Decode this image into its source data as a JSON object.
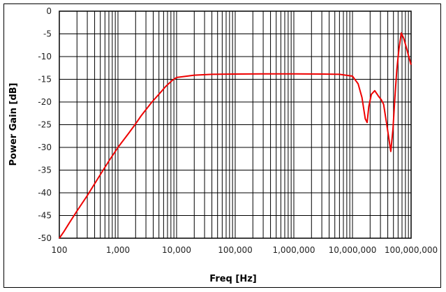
{
  "chart_data": {
    "type": "line",
    "title": "",
    "xlabel": "Freq [Hz]",
    "ylabel": "Power Gain [dB]",
    "xscale": "log",
    "xlim": [
      100,
      100000000
    ],
    "ylim": [
      -50,
      0
    ],
    "grid": true,
    "legend": "none",
    "x_tick_labels": [
      "100",
      "1,000",
      "10,000",
      "100,000",
      "1,000,000",
      "10,000,000",
      "100,000,000"
    ],
    "x_ticks": [
      100,
      1000,
      10000,
      100000,
      1000000,
      10000000,
      100000000
    ],
    "y_ticks": [
      0,
      -5,
      -10,
      -15,
      -20,
      -25,
      -30,
      -35,
      -40,
      -45,
      -50
    ],
    "y_tick_labels": [
      "0",
      "-5",
      "-10",
      "-15",
      "-20",
      "-25",
      "-30",
      "-35",
      "-40",
      "-45",
      "-50"
    ],
    "series": [
      {
        "name": "Power Gain",
        "color": "#ee0000",
        "x": [
          100,
          120,
          150,
          200,
          300,
          500,
          700,
          1000,
          1500,
          1950,
          2500,
          3800,
          5000,
          6500,
          8500,
          10000,
          15000,
          20000,
          40000,
          100000,
          300000,
          1000000,
          3000000,
          6000000,
          10000000,
          12500000,
          14500000,
          16500000,
          17800000,
          19000000,
          21000000,
          24000000,
          28000000,
          31000000,
          34000000,
          38000000,
          42000000,
          45000000,
          49000000,
          53000000,
          57000000,
          62000000,
          68000000,
          75000000,
          83000000,
          92000000,
          100000000
        ],
        "y": [
          -50,
          -48.5,
          -46.5,
          -44,
          -40.6,
          -36,
          -33,
          -30,
          -27,
          -25,
          -23,
          -20,
          -18.3,
          -16.6,
          -15.2,
          -14.6,
          -14.3,
          -14.1,
          -13.9,
          -13.85,
          -13.8,
          -13.8,
          -13.85,
          -13.9,
          -14.3,
          -16,
          -19,
          -23.7,
          -24.5,
          -21,
          -18.3,
          -17.5,
          -18.8,
          -19.5,
          -20.5,
          -24.5,
          -28.3,
          -30.9,
          -26,
          -19,
          -12.9,
          -8.3,
          -4.8,
          -6,
          -8,
          -10.2,
          -11.8
        ]
      }
    ]
  },
  "colors": {
    "line": "#ee0000",
    "grid": "#000000",
    "background": "#ffffff"
  }
}
